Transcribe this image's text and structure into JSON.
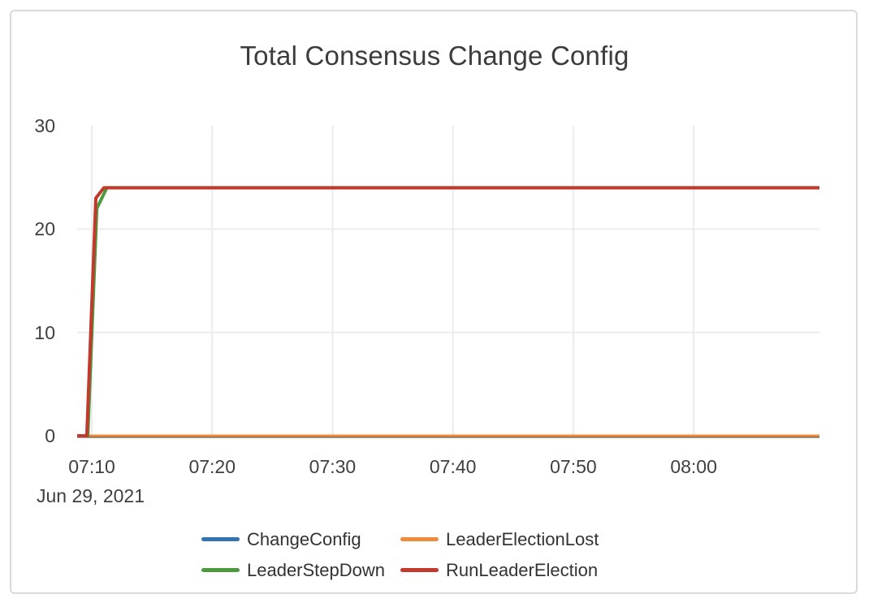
{
  "chart_data": {
    "type": "line",
    "title": "Total Consensus Change Config",
    "date_label": "Jun 29, 2021",
    "x_ticks": [
      "07:10",
      "07:20",
      "07:30",
      "07:40",
      "07:50",
      "08:00"
    ],
    "y_ticks": [
      0,
      10,
      20,
      30
    ],
    "ylim": [
      0,
      30
    ],
    "x_range": [
      "07:08:47",
      "08:10:27"
    ],
    "grid": true,
    "legend_position": "bottom-center",
    "colors": {
      "grid": "#ececec",
      "zero_line": "#474747",
      "tick_text": "#3f3f3f",
      "title_text": "#3c3c3c",
      "legend_text": "#333333",
      "card_border": "#dadada"
    },
    "series": [
      {
        "name": "ChangeConfig",
        "color": "#3274b3",
        "width": 3,
        "points": [
          [
            "07:08:47",
            0
          ],
          [
            "08:10:27",
            0
          ]
        ]
      },
      {
        "name": "LeaderElectionLost",
        "color": "#ee8a39",
        "width": 3,
        "points": [
          [
            "07:08:47",
            0
          ],
          [
            "08:10:27",
            0
          ]
        ]
      },
      {
        "name": "LeaderStepDown",
        "color": "#4c9a3d",
        "width": 4,
        "points": [
          [
            "07:08:47",
            0
          ],
          [
            "07:09:40",
            0
          ],
          [
            "07:10:25",
            22
          ],
          [
            "07:11:15",
            24
          ],
          [
            "08:10:27",
            24
          ]
        ]
      },
      {
        "name": "RunLeaderElection",
        "color": "#c23a2e",
        "width": 4,
        "points": [
          [
            "07:08:47",
            0
          ],
          [
            "07:09:35",
            0
          ],
          [
            "07:10:20",
            23
          ],
          [
            "07:11:00",
            24
          ],
          [
            "08:10:27",
            24
          ]
        ]
      }
    ]
  }
}
